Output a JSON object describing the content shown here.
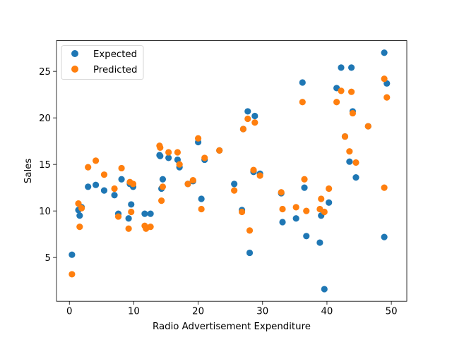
{
  "chart_data": {
    "type": "scatter",
    "title": "",
    "xlabel": "Radio Advertisement Expenditure",
    "ylabel": "Sales",
    "xlim": [
      -2.0,
      52.4
    ],
    "ylim": [
      0.3,
      28.3
    ],
    "xticks": [
      0,
      10,
      20,
      30,
      40,
      50
    ],
    "yticks": [
      5,
      10,
      15,
      20,
      25
    ],
    "grid": false,
    "legend_position": "top-left",
    "series": [
      {
        "name": "Expected",
        "color": "#1f77b4",
        "points": [
          [
            0.4,
            5.3
          ],
          [
            1.4,
            10.1
          ],
          [
            1.6,
            9.5
          ],
          [
            1.9,
            10.4
          ],
          [
            2.9,
            12.6
          ],
          [
            4.1,
            12.8
          ],
          [
            5.4,
            12.2
          ],
          [
            7.0,
            11.7
          ],
          [
            7.6,
            9.7
          ],
          [
            8.1,
            13.4
          ],
          [
            9.2,
            9.2
          ],
          [
            9.4,
            12.9
          ],
          [
            9.6,
            10.7
          ],
          [
            9.9,
            12.6
          ],
          [
            11.7,
            9.7
          ],
          [
            12.6,
            9.7
          ],
          [
            14.0,
            16.0
          ],
          [
            14.1,
            15.9
          ],
          [
            14.3,
            12.4
          ],
          [
            14.5,
            13.4
          ],
          [
            15.4,
            15.7
          ],
          [
            16.8,
            15.5
          ],
          [
            17.1,
            14.7
          ],
          [
            18.4,
            12.9
          ],
          [
            19.2,
            13.2
          ],
          [
            20.0,
            17.4
          ],
          [
            20.5,
            11.3
          ],
          [
            21.0,
            15.5
          ],
          [
            23.3,
            16.5
          ],
          [
            25.6,
            12.9
          ],
          [
            26.8,
            10.1
          ],
          [
            27.0,
            18.8
          ],
          [
            27.7,
            20.7
          ],
          [
            28.0,
            5.5
          ],
          [
            28.6,
            14.2
          ],
          [
            28.8,
            20.2
          ],
          [
            29.6,
            14.0
          ],
          [
            32.9,
            11.9
          ],
          [
            33.1,
            8.8
          ],
          [
            35.2,
            9.2
          ],
          [
            36.2,
            23.8
          ],
          [
            36.5,
            12.5
          ],
          [
            36.8,
            7.3
          ],
          [
            38.9,
            6.6
          ],
          [
            39.1,
            9.5
          ],
          [
            39.6,
            1.6
          ],
          [
            40.3,
            10.9
          ],
          [
            41.5,
            23.2
          ],
          [
            42.2,
            25.4
          ],
          [
            42.8,
            18.0
          ],
          [
            43.5,
            15.3
          ],
          [
            43.8,
            25.4
          ],
          [
            44.0,
            20.7
          ],
          [
            44.5,
            13.6
          ],
          [
            46.4,
            19.1
          ],
          [
            48.9,
            27.0
          ],
          [
            48.9,
            7.2
          ],
          [
            49.3,
            23.7
          ]
        ]
      },
      {
        "name": "Predicted",
        "color": "#ff7f0e",
        "points": [
          [
            0.4,
            3.2
          ],
          [
            1.4,
            10.8
          ],
          [
            1.6,
            8.3
          ],
          [
            1.9,
            10.3
          ],
          [
            2.9,
            14.7
          ],
          [
            4.1,
            15.4
          ],
          [
            5.4,
            13.9
          ],
          [
            7.0,
            12.4
          ],
          [
            7.6,
            9.4
          ],
          [
            8.1,
            14.6
          ],
          [
            9.2,
            8.1
          ],
          [
            9.4,
            13.1
          ],
          [
            9.6,
            9.9
          ],
          [
            9.9,
            12.9
          ],
          [
            11.7,
            8.4
          ],
          [
            11.9,
            8.1
          ],
          [
            12.6,
            8.3
          ],
          [
            14.0,
            17.0
          ],
          [
            14.1,
            16.8
          ],
          [
            14.3,
            11.1
          ],
          [
            14.5,
            12.6
          ],
          [
            15.4,
            16.3
          ],
          [
            16.8,
            16.3
          ],
          [
            17.1,
            15.0
          ],
          [
            18.4,
            12.9
          ],
          [
            19.2,
            13.3
          ],
          [
            20.0,
            17.8
          ],
          [
            20.5,
            10.2
          ],
          [
            21.0,
            15.7
          ],
          [
            23.3,
            16.5
          ],
          [
            25.6,
            12.2
          ],
          [
            26.8,
            9.9
          ],
          [
            27.0,
            18.8
          ],
          [
            27.7,
            19.9
          ],
          [
            28.0,
            7.9
          ],
          [
            28.6,
            14.4
          ],
          [
            28.8,
            19.5
          ],
          [
            29.6,
            13.8
          ],
          [
            32.9,
            12.0
          ],
          [
            33.1,
            10.2
          ],
          [
            35.2,
            10.4
          ],
          [
            36.2,
            21.7
          ],
          [
            36.5,
            13.4
          ],
          [
            36.8,
            10.0
          ],
          [
            38.9,
            10.2
          ],
          [
            39.1,
            11.3
          ],
          [
            39.6,
            9.9
          ],
          [
            40.3,
            12.4
          ],
          [
            41.5,
            21.7
          ],
          [
            42.2,
            22.9
          ],
          [
            42.8,
            18.0
          ],
          [
            43.5,
            16.4
          ],
          [
            43.8,
            22.8
          ],
          [
            44.0,
            20.5
          ],
          [
            44.5,
            15.2
          ],
          [
            46.4,
            19.1
          ],
          [
            48.9,
            24.2
          ],
          [
            48.9,
            12.5
          ],
          [
            49.3,
            22.2
          ]
        ]
      }
    ]
  }
}
